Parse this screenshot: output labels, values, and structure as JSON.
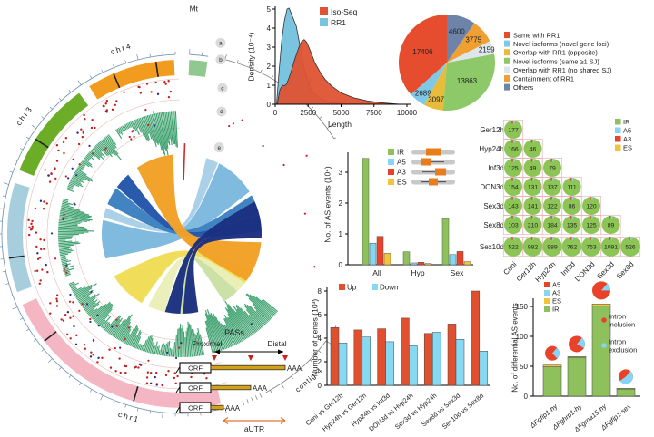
{
  "circos": {
    "mt_label": "Mt",
    "mt_color": "#8fc98f",
    "track_labels": [
      "a",
      "b",
      "c",
      "d",
      "e"
    ],
    "chromosomes": [
      {
        "name": "chr1",
        "color": "#f4b6c2"
      },
      {
        "name": "chr2",
        "color": "#a6cedd"
      },
      {
        "name": "chr3",
        "color": "#6cad27"
      },
      {
        "name": "chr4",
        "color": "#f29c1f"
      }
    ],
    "contigs": [
      "contig-1",
      "contig-2",
      "contig-3",
      "contig-4"
    ],
    "track_colors": {
      "scatter_dots": "#c41f1f",
      "scatter_dots_alt": "#2b2b8c",
      "histogram": "#3aa06c",
      "ring_e_mark": "#cc2b2b"
    }
  },
  "pas": {
    "title": "PASs",
    "proximal": "Proximal",
    "distal": "Distal",
    "orf": "ORF",
    "aaa": "AAA",
    "autr": "aUTR",
    "arrow_color": "#cc2020",
    "autr_color": "#e87430",
    "utr_line_color": "#d4a017"
  },
  "chart_data": [
    {
      "id": "length_density",
      "type": "area",
      "xlabel": "Length",
      "ylabel": "Density (10⁻⁴)",
      "xlim": [
        0,
        10000
      ],
      "ylim": [
        0,
        5
      ],
      "xticks": [
        0,
        2500,
        5000,
        7500,
        10000
      ],
      "yticks": [
        0,
        1,
        2,
        3,
        4,
        5
      ],
      "legend_position": "top-right-inside",
      "series": [
        {
          "name": "RR1",
          "color": "#7ac4e0",
          "x": [
            100,
            300,
            500,
            700,
            900,
            1050,
            1200,
            1400,
            1600,
            1900,
            2200,
            2500,
            2800,
            3200,
            3800,
            4500,
            5500
          ],
          "y": [
            0,
            1.8,
            3.4,
            4.4,
            5.0,
            5.05,
            4.8,
            4.45,
            4.1,
            3.0,
            1.9,
            1.15,
            0.7,
            0.4,
            0.18,
            0.07,
            0
          ]
        },
        {
          "name": "Iso-Seq",
          "color": "#df5233",
          "x": [
            150,
            350,
            550,
            700,
            850,
            1000,
            1200,
            1500,
            1800,
            2000,
            2200,
            2400,
            2700,
            3000,
            3400,
            3800,
            4300,
            5000,
            6000,
            7000,
            8000,
            9500
          ],
          "y": [
            0,
            0.75,
            1.0,
            0.97,
            1.05,
            1.3,
            1.7,
            2.4,
            3.0,
            3.3,
            3.4,
            3.25,
            2.75,
            2.2,
            1.7,
            1.3,
            0.95,
            0.6,
            0.33,
            0.18,
            0.08,
            0
          ]
        }
      ],
      "legend_order": [
        "Iso-Seq",
        "RR1"
      ]
    },
    {
      "id": "isoform_classification",
      "type": "pie",
      "slices": [
        {
          "label": "Same with RR1",
          "value": 17406,
          "color": "#e64c2e"
        },
        {
          "label": "Novel isoforms (novel gene loci)",
          "value": 2689,
          "color": "#7fc9e8"
        },
        {
          "label": "Overlap with RR1 (opposite)",
          "value": 3097,
          "color": "#e7bc3a"
        },
        {
          "label": "Novel isoforms (same ≥1 SJ)",
          "value": 13863,
          "color": "#8ec969"
        },
        {
          "label": "Overlap with RR1 (no shared SJ)",
          "value": 2159,
          "color": "#dde6ec"
        },
        {
          "label": "Containment of RR1",
          "value": 3775,
          "color": "#f09f33"
        },
        {
          "label": "Others",
          "value": 4600,
          "color": "#6d84a8"
        }
      ],
      "legend_position": "right"
    },
    {
      "id": "as_events",
      "type": "bar",
      "grouped": true,
      "ylabel": "No. of AS events (10⁴)",
      "categories": [
        "All",
        "Hyp",
        "Sex"
      ],
      "yticks": [
        0,
        1,
        2,
        3
      ],
      "ylim": [
        0,
        3.6
      ],
      "series": [
        {
          "name": "IR",
          "color": "#8ec15c",
          "values": [
            3.45,
            0.42,
            1.5
          ]
        },
        {
          "name": "A5",
          "color": "#86d5f5",
          "values": [
            0.7,
            0.06,
            0.33
          ]
        },
        {
          "name": "A3",
          "color": "#e8432a",
          "values": [
            0.92,
            0.08,
            0.43
          ]
        },
        {
          "name": "ES",
          "color": "#f2c33c",
          "values": [
            0.37,
            0.04,
            0.1
          ]
        }
      ],
      "legend_position": "top-right-inside"
    },
    {
      "id": "pairwise_diff_as",
      "type": "heatmap",
      "cell_style": "pie",
      "rows": [
        "Ger12h",
        "Hyp24h",
        "Inf3d",
        "DON3d",
        "Sex3d",
        "Sex8d",
        "Sex10d"
      ],
      "cols": [
        "Coni",
        "Ger12h",
        "Hyp24h",
        "Inf3d",
        "DON3d",
        "Sex3d",
        "Sex8d"
      ],
      "values": [
        [
          177
        ],
        [
          166,
          46
        ],
        [
          125,
          49,
          79
        ],
        [
          154,
          131,
          137,
          111
        ],
        [
          143,
          141,
          122,
          86,
          120
        ],
        [
          103,
          210,
          184,
          135,
          125,
          89
        ],
        [
          522,
          982,
          989,
          762,
          753,
          1091,
          526
        ]
      ],
      "legend": [
        {
          "name": "IR",
          "color": "#8ec15c"
        },
        {
          "name": "A5",
          "color": "#86d5f5"
        },
        {
          "name": "A3",
          "color": "#e8432a"
        },
        {
          "name": "ES",
          "color": "#f2c33c"
        }
      ],
      "cell_fill": "#8cc556"
    },
    {
      "id": "deg",
      "type": "bar",
      "grouped": true,
      "ylabel": "Number of genes (10³)",
      "categories": [
        "Coni vs Ger12h",
        "Hyp24h vs Ger12h",
        "Hyp24h vs Inf3d",
        "DON3d vs Hyp24h",
        "Sex3d vs Hyp24h",
        "Sex8d vs Sex3d",
        "Sex10d vs Sex8d"
      ],
      "yticks": [
        0,
        2,
        4,
        6,
        8
      ],
      "ylim": [
        0,
        8.3
      ],
      "series": [
        {
          "name": "Up",
          "color": "#e0502f",
          "values": [
            4.9,
            4.7,
            4.8,
            5.7,
            4.4,
            5.2,
            8.0
          ]
        },
        {
          "name": "Down",
          "color": "#85d9f2",
          "values": [
            3.6,
            4.1,
            3.7,
            3.35,
            4.5,
            3.9,
            2.9
          ]
        }
      ],
      "legend_position": "top-left-inside"
    },
    {
      "id": "mutant_diff_as",
      "type": "bar",
      "stacked": true,
      "ylabel": "No. of differential AS events",
      "categories": [
        "ΔFgfip1-hy",
        "ΔFghrp1-hy",
        "ΔFgrna15-hy",
        "ΔFgfip1-sex"
      ],
      "yticks": [
        0,
        50,
        100,
        150
      ],
      "ylim": [
        0,
        165
      ],
      "stacks": [
        {
          "name": "IR",
          "color": "#8ec15c",
          "values": [
            49,
            65,
            151,
            12
          ]
        },
        {
          "name": "ES",
          "color": "#f2c33c",
          "values": [
            3,
            1,
            3,
            1
          ]
        }
      ],
      "legend": [
        {
          "name": "A5",
          "color": "#e8432a"
        },
        {
          "name": "A3",
          "color": "#86d5f5"
        },
        {
          "name": "ES",
          "color": "#f2c33c"
        },
        {
          "name": "IR",
          "color": "#8ec15c"
        }
      ],
      "pies": {
        "labels": [
          [
            "Intron",
            "inclusion"
          ],
          [
            "Intron",
            "exclusion"
          ]
        ],
        "colors": [
          "#e8432a",
          "#86d5f5"
        ],
        "inclusion_fractions": [
          0.73,
          0.78,
          0.86,
          0.46
        ],
        "radii": [
          8,
          9,
          10,
          8
        ]
      }
    }
  ]
}
